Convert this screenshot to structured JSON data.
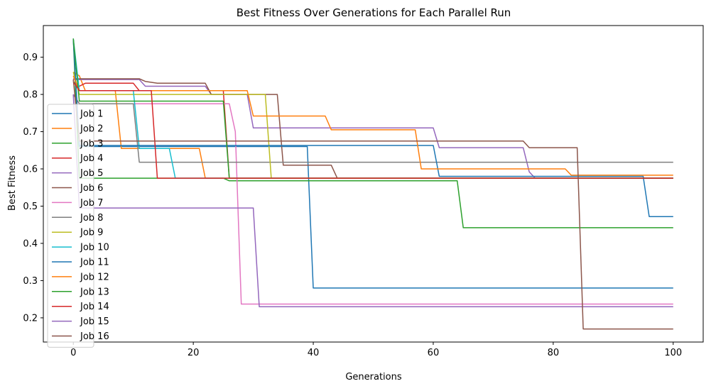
{
  "chart_data": {
    "type": "line",
    "title": "Best Fitness Over Generations for Each Parallel Run",
    "xlabel": "Generations",
    "ylabel": "Best Fitness",
    "xlim": [
      -5,
      105
    ],
    "ylim": [
      0.135,
      0.985
    ],
    "xticks": [
      0,
      20,
      40,
      60,
      80,
      100
    ],
    "yticks": [
      0.2,
      0.3,
      0.4,
      0.5,
      0.6,
      0.7,
      0.8,
      0.9
    ],
    "legend_position": "left",
    "series": [
      {
        "name": "Job 1",
        "color": "#1f77b4",
        "steps": [
          [
            0,
            0.95
          ],
          [
            1,
            0.66
          ],
          [
            39,
            0.66
          ],
          [
            40,
            0.28
          ],
          [
            100,
            0.28
          ]
        ]
      },
      {
        "name": "Job 2",
        "color": "#ff7f0e",
        "steps": [
          [
            0,
            0.86
          ],
          [
            1,
            0.85
          ],
          [
            2,
            0.81
          ],
          [
            7,
            0.81
          ],
          [
            8,
            0.655
          ],
          [
            21,
            0.655
          ],
          [
            22,
            0.575
          ],
          [
            100,
            0.575
          ]
        ]
      },
      {
        "name": "Job 3",
        "color": "#2ca02c",
        "steps": [
          [
            0,
            0.95
          ],
          [
            1,
            0.575
          ],
          [
            25,
            0.575
          ],
          [
            26,
            0.568
          ],
          [
            64,
            0.568
          ],
          [
            65,
            0.442
          ],
          [
            100,
            0.442
          ]
        ]
      },
      {
        "name": "Job 4",
        "color": "#d62728",
        "steps": [
          [
            0,
            0.83
          ],
          [
            1,
            0.822
          ],
          [
            2,
            0.83
          ],
          [
            10,
            0.83
          ],
          [
            11,
            0.81
          ],
          [
            25,
            0.81
          ],
          [
            26,
            0.575
          ],
          [
            100,
            0.575
          ]
        ]
      },
      {
        "name": "Job 5",
        "color": "#9467bd",
        "steps": [
          [
            0,
            0.84
          ],
          [
            5,
            0.84
          ],
          [
            6,
            0.84
          ],
          [
            11,
            0.84
          ],
          [
            12,
            0.822
          ],
          [
            22,
            0.822
          ],
          [
            23,
            0.8
          ],
          [
            29,
            0.8
          ],
          [
            30,
            0.71
          ],
          [
            60,
            0.71
          ],
          [
            61,
            0.657
          ],
          [
            75,
            0.657
          ],
          [
            76,
            0.592
          ],
          [
            77,
            0.575
          ],
          [
            100,
            0.575
          ]
        ]
      },
      {
        "name": "Job 6",
        "color": "#8c564b",
        "steps": [
          [
            0,
            0.842
          ],
          [
            5,
            0.842
          ],
          [
            6,
            0.842
          ],
          [
            11,
            0.842
          ],
          [
            12,
            0.835
          ],
          [
            14,
            0.83
          ],
          [
            22,
            0.83
          ],
          [
            23,
            0.8
          ],
          [
            29,
            0.8
          ],
          [
            30,
            0.8
          ],
          [
            34,
            0.8
          ],
          [
            35,
            0.61
          ],
          [
            43,
            0.61
          ],
          [
            44,
            0.575
          ],
          [
            100,
            0.575
          ]
        ]
      },
      {
        "name": "Job 7",
        "color": "#e377c2",
        "steps": [
          [
            0,
            0.8
          ],
          [
            1,
            0.775
          ],
          [
            26,
            0.775
          ],
          [
            27,
            0.7
          ],
          [
            28,
            0.237
          ],
          [
            100,
            0.237
          ]
        ]
      },
      {
        "name": "Job 8",
        "color": "#7f7f7f",
        "steps": [
          [
            0,
            0.8
          ],
          [
            1,
            0.775
          ],
          [
            10,
            0.775
          ],
          [
            11,
            0.618
          ],
          [
            100,
            0.618
          ]
        ]
      },
      {
        "name": "Job 9",
        "color": "#bcbd22",
        "steps": [
          [
            0,
            0.86
          ],
          [
            1,
            0.8
          ],
          [
            32,
            0.8
          ],
          [
            33,
            0.575
          ],
          [
            100,
            0.575
          ]
        ]
      },
      {
        "name": "Job 10",
        "color": "#17becf",
        "steps": [
          [
            0,
            0.95
          ],
          [
            1,
            0.81
          ],
          [
            10,
            0.81
          ],
          [
            11,
            0.655
          ],
          [
            16,
            0.655
          ],
          [
            17,
            0.575
          ],
          [
            100,
            0.575
          ]
        ]
      },
      {
        "name": "Job 11",
        "color": "#1f77b4",
        "steps": [
          [
            0,
            0.95
          ],
          [
            1,
            0.663
          ],
          [
            60,
            0.663
          ],
          [
            61,
            0.58
          ],
          [
            95,
            0.58
          ],
          [
            96,
            0.472
          ],
          [
            100,
            0.472
          ]
        ]
      },
      {
        "name": "Job 12",
        "color": "#ff7f0e",
        "steps": [
          [
            0,
            0.85
          ],
          [
            1,
            0.81
          ],
          [
            29,
            0.81
          ],
          [
            30,
            0.742
          ],
          [
            42,
            0.742
          ],
          [
            43,
            0.705
          ],
          [
            57,
            0.705
          ],
          [
            58,
            0.6
          ],
          [
            82,
            0.6
          ],
          [
            83,
            0.583
          ],
          [
            100,
            0.583
          ]
        ]
      },
      {
        "name": "Job 13",
        "color": "#2ca02c",
        "steps": [
          [
            0,
            0.95
          ],
          [
            1,
            0.782
          ],
          [
            25,
            0.782
          ],
          [
            26,
            0.575
          ],
          [
            100,
            0.575
          ]
        ]
      },
      {
        "name": "Job 14",
        "color": "#d62728",
        "steps": [
          [
            0,
            0.835
          ],
          [
            1,
            0.81
          ],
          [
            13,
            0.81
          ],
          [
            14,
            0.575
          ],
          [
            100,
            0.575
          ]
        ]
      },
      {
        "name": "Job 15",
        "color": "#9467bd",
        "steps": [
          [
            0,
            0.8
          ],
          [
            1,
            0.495
          ],
          [
            29,
            0.495
          ],
          [
            30,
            0.495
          ],
          [
            31,
            0.23
          ],
          [
            100,
            0.23
          ]
        ]
      },
      {
        "name": "Job 16",
        "color": "#8c564b",
        "steps": [
          [
            0,
            0.84
          ],
          [
            1,
            0.675
          ],
          [
            75,
            0.675
          ],
          [
            76,
            0.657
          ],
          [
            84,
            0.657
          ],
          [
            85,
            0.17
          ],
          [
            100,
            0.17
          ]
        ]
      }
    ]
  }
}
